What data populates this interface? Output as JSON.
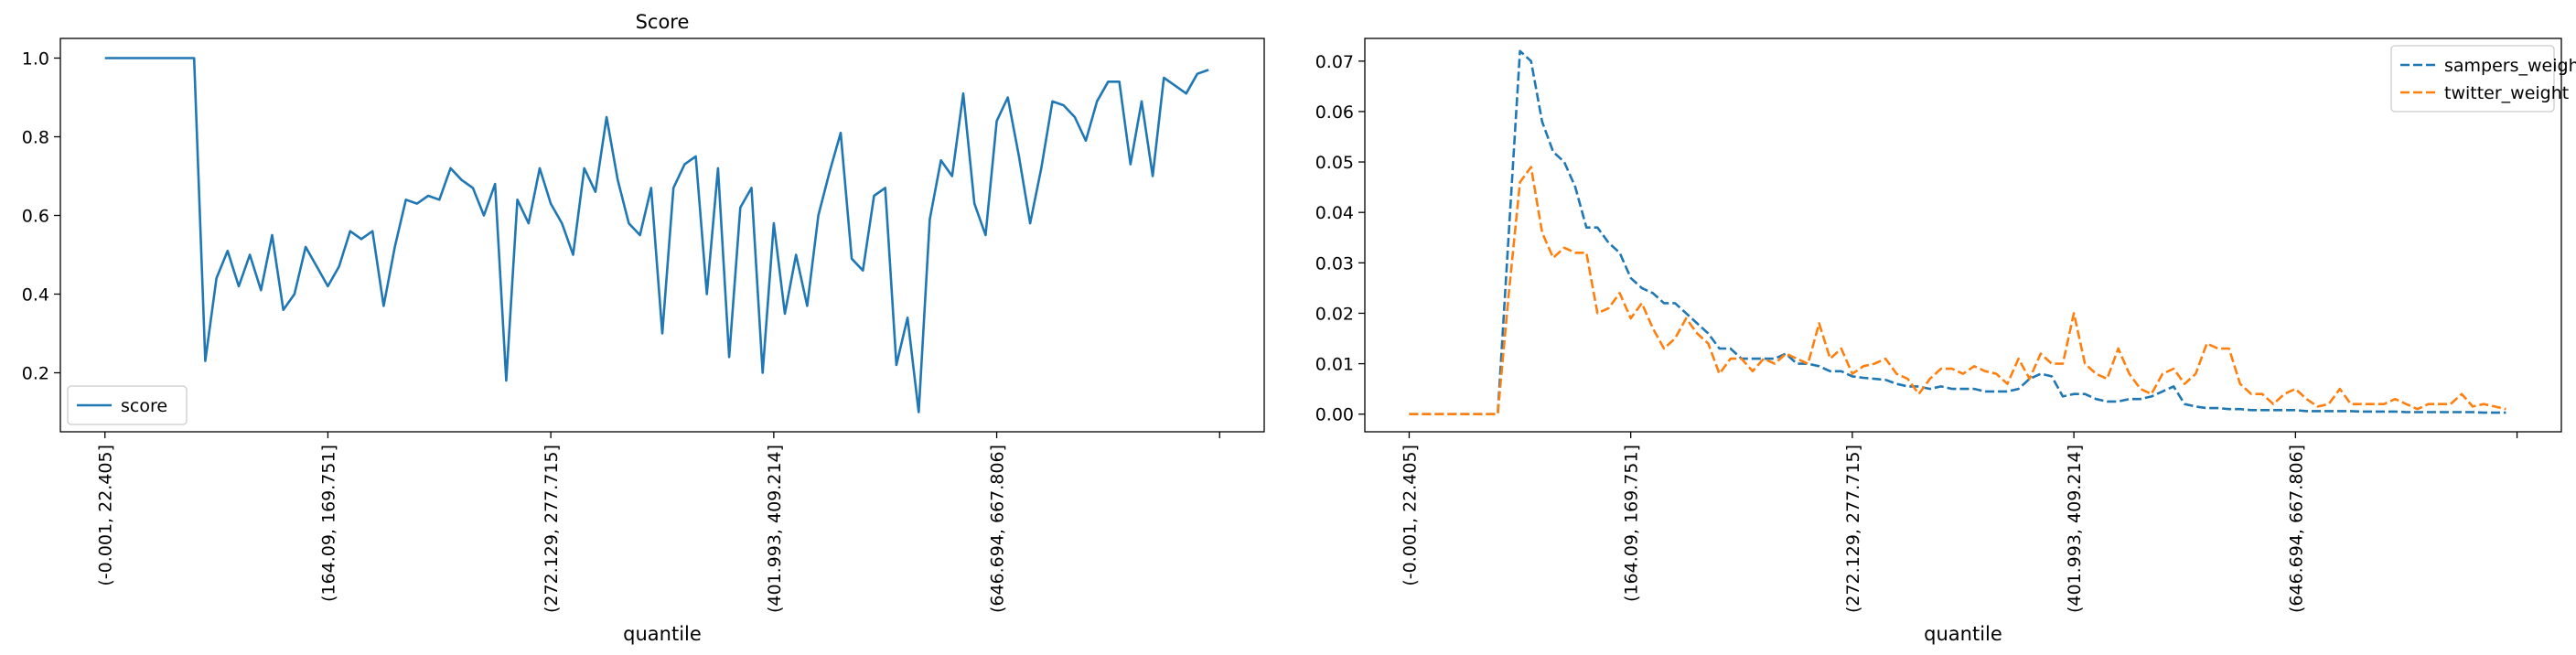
{
  "chart_data": [
    {
      "type": "line",
      "title": "Score",
      "xlabel": "quantile",
      "ylabel": "",
      "ylim": [
        0.05,
        1.05
      ],
      "yticks": [
        0.2,
        0.4,
        0.6,
        0.8,
        1.0
      ],
      "ytick_labels": [
        "0.2",
        "0.4",
        "0.6",
        "0.8",
        "1.0"
      ],
      "xlim": [
        -4,
        104
      ],
      "xtick_positions": [
        0,
        20,
        40,
        60,
        80,
        100
      ],
      "xtick_labels": [
        "(-0.001, 22.405]",
        "(164.09, 169.751]",
        "(272.129, 277.715]",
        "(401.993, 409.214]",
        "(646.694, 667.806]",
        ""
      ],
      "legend_position": "lower-left",
      "grid": false,
      "series": [
        {
          "name": "score",
          "color": "#1f77b4",
          "style": "solid",
          "values": [
            1.0,
            1.0,
            1.0,
            1.0,
            1.0,
            1.0,
            1.0,
            1.0,
            1.0,
            0.23,
            0.44,
            0.51,
            0.42,
            0.5,
            0.41,
            0.55,
            0.36,
            0.4,
            0.52,
            0.47,
            0.42,
            0.47,
            0.56,
            0.54,
            0.56,
            0.37,
            0.52,
            0.64,
            0.63,
            0.65,
            0.64,
            0.72,
            0.69,
            0.67,
            0.6,
            0.68,
            0.18,
            0.64,
            0.58,
            0.72,
            0.63,
            0.58,
            0.5,
            0.72,
            0.66,
            0.85,
            0.69,
            0.58,
            0.55,
            0.67,
            0.3,
            0.67,
            0.73,
            0.75,
            0.4,
            0.72,
            0.24,
            0.62,
            0.67,
            0.2,
            0.58,
            0.35,
            0.5,
            0.37,
            0.6,
            0.71,
            0.81,
            0.49,
            0.46,
            0.65,
            0.67,
            0.22,
            0.34,
            0.1,
            0.59,
            0.74,
            0.7,
            0.91,
            0.63,
            0.55,
            0.84,
            0.9,
            0.75,
            0.58,
            0.72,
            0.89,
            0.88,
            0.85,
            0.79,
            0.89,
            0.94,
            0.94,
            0.73,
            0.89,
            0.7,
            0.95,
            0.93,
            0.91,
            0.96,
            0.97
          ]
        }
      ]
    },
    {
      "type": "line",
      "title": "",
      "xlabel": "quantile",
      "ylabel": "",
      "ylim": [
        -0.0035,
        0.0745
      ],
      "yticks": [
        0.0,
        0.01,
        0.02,
        0.03,
        0.04,
        0.05,
        0.06,
        0.07
      ],
      "ytick_labels": [
        "0.00",
        "0.01",
        "0.02",
        "0.03",
        "0.04",
        "0.05",
        "0.06",
        "0.07"
      ],
      "xlim": [
        -4,
        104
      ],
      "xtick_positions": [
        0,
        20,
        40,
        60,
        80,
        100
      ],
      "xtick_labels": [
        "(-0.001, 22.405]",
        "(164.09, 169.751]",
        "(272.129, 277.715]",
        "(401.993, 409.214]",
        "(646.694, 667.806]",
        ""
      ],
      "legend_position": "upper-right",
      "grid": false,
      "series": [
        {
          "name": "sampers_weight",
          "color": "#1f77b4",
          "style": "dashed",
          "values": [
            0,
            0,
            0,
            0,
            0,
            0,
            0,
            0,
            0,
            0.036,
            0.072,
            0.07,
            0.058,
            0.052,
            0.05,
            0.045,
            0.037,
            0.037,
            0.034,
            0.032,
            0.027,
            0.025,
            0.024,
            0.022,
            0.022,
            0.02,
            0.018,
            0.016,
            0.013,
            0.013,
            0.011,
            0.011,
            0.011,
            0.011,
            0.012,
            0.01,
            0.01,
            0.0095,
            0.0085,
            0.0085,
            0.0075,
            0.0072,
            0.007,
            0.0068,
            0.006,
            0.0055,
            0.0055,
            0.005,
            0.0055,
            0.005,
            0.005,
            0.005,
            0.0045,
            0.0045,
            0.0045,
            0.005,
            0.007,
            0.008,
            0.0075,
            0.0035,
            0.004,
            0.004,
            0.003,
            0.0025,
            0.0025,
            0.003,
            0.003,
            0.0035,
            0.0045,
            0.0055,
            0.002,
            0.0015,
            0.0012,
            0.0012,
            0.001,
            0.001,
            0.0008,
            0.0008,
            0.0008,
            0.0008,
            0.0008,
            0.0006,
            0.0006,
            0.0006,
            0.0006,
            0.0006,
            0.0005,
            0.0005,
            0.0005,
            0.0005,
            0.0004,
            0.0004,
            0.0004,
            0.0004,
            0.0004,
            0.0004,
            0.0004,
            0.0003,
            0.0003,
            0.0003
          ]
        },
        {
          "name": "twitter_weight",
          "color": "#ff7f0e",
          "style": "dashed",
          "values": [
            0,
            0,
            0,
            0,
            0,
            0,
            0,
            0,
            0,
            0.024,
            0.046,
            0.049,
            0.036,
            0.031,
            0.033,
            0.032,
            0.032,
            0.02,
            0.021,
            0.024,
            0.019,
            0.022,
            0.017,
            0.013,
            0.015,
            0.019,
            0.016,
            0.014,
            0.008,
            0.011,
            0.011,
            0.0085,
            0.011,
            0.01,
            0.012,
            0.011,
            0.01,
            0.018,
            0.011,
            0.013,
            0.008,
            0.0095,
            0.01,
            0.011,
            0.008,
            0.007,
            0.004,
            0.007,
            0.009,
            0.009,
            0.008,
            0.0095,
            0.0085,
            0.008,
            0.006,
            0.011,
            0.007,
            0.012,
            0.01,
            0.01,
            0.02,
            0.01,
            0.008,
            0.007,
            0.013,
            0.008,
            0.005,
            0.004,
            0.008,
            0.009,
            0.006,
            0.008,
            0.014,
            0.013,
            0.013,
            0.006,
            0.004,
            0.004,
            0.002,
            0.004,
            0.005,
            0.003,
            0.0015,
            0.002,
            0.005,
            0.002,
            0.002,
            0.002,
            0.002,
            0.003,
            0.002,
            0.001,
            0.002,
            0.002,
            0.002,
            0.004,
            0.0015,
            0.002,
            0.0015,
            0.001
          ]
        }
      ]
    }
  ]
}
